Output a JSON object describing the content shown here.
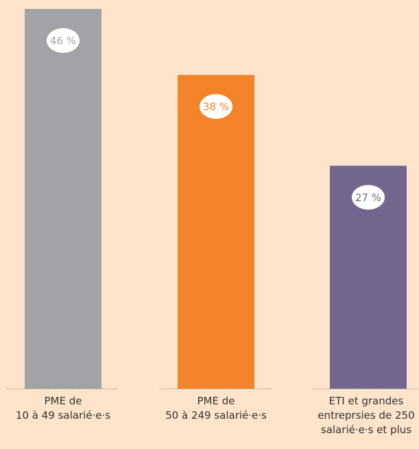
{
  "chart_data": {
    "type": "bar",
    "title": "",
    "xlabel": "",
    "ylabel": "",
    "ylim": [
      0,
      46
    ],
    "grid": false,
    "legend": "none",
    "categories": [
      [
        "PME de",
        "10 à 49 salarié·e·s"
      ],
      [
        "PME de",
        "50 à 249 salarié·e·s"
      ],
      [
        "ETI et grandes",
        "entreprsies de 250",
        "salarié·e·s et plus"
      ]
    ],
    "values": [
      46,
      38,
      27
    ],
    "value_labels": [
      "46 %",
      "38 %",
      "27 %"
    ],
    "colors": [
      "#a1a3a6",
      "#f3842a",
      "#72668e"
    ],
    "background": "#fde4cb",
    "baseline_color": "#6a6a6a"
  }
}
